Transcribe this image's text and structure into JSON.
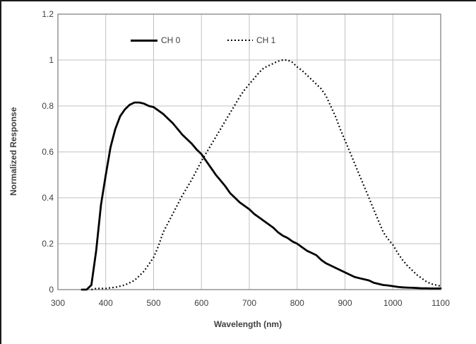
{
  "chart_data": {
    "type": "line",
    "title": "",
    "xlabel": "Wavelength (nm)",
    "ylabel": "Normalized Response",
    "xlim": [
      300,
      1100
    ],
    "ylim": [
      0,
      1.2
    ],
    "grid": true,
    "legend_position": "top-inside",
    "x_ticks": [
      300,
      400,
      500,
      600,
      700,
      800,
      900,
      1000,
      1100
    ],
    "y_ticks": [
      0,
      0.2,
      0.4,
      0.6,
      0.8,
      1,
      1.2
    ],
    "y_tick_labels": [
      "0",
      "0.2",
      "0.4",
      "0.6",
      "0.8",
      "1",
      "1.2"
    ],
    "x": [
      350,
      360,
      370,
      380,
      390,
      400,
      410,
      420,
      430,
      440,
      450,
      460,
      470,
      480,
      490,
      500,
      510,
      520,
      530,
      540,
      550,
      560,
      570,
      580,
      590,
      600,
      610,
      620,
      630,
      640,
      650,
      660,
      670,
      680,
      690,
      700,
      710,
      720,
      730,
      740,
      750,
      760,
      770,
      780,
      790,
      800,
      810,
      820,
      830,
      840,
      850,
      860,
      870,
      880,
      890,
      900,
      910,
      920,
      930,
      940,
      950,
      960,
      970,
      980,
      990,
      1000,
      1010,
      1020,
      1030,
      1040,
      1050,
      1060,
      1070,
      1080,
      1090,
      1100
    ],
    "series": [
      {
        "name": "CH 0",
        "style": "solid",
        "color": "#000000",
        "values": [
          0,
          0,
          0.02,
          0.17,
          0.37,
          0.5,
          0.62,
          0.7,
          0.755,
          0.785,
          0.805,
          0.815,
          0.815,
          0.81,
          0.8,
          0.795,
          0.78,
          0.765,
          0.745,
          0.725,
          0.7,
          0.675,
          0.655,
          0.635,
          0.61,
          0.59,
          0.56,
          0.53,
          0.5,
          0.475,
          0.45,
          0.42,
          0.4,
          0.38,
          0.365,
          0.35,
          0.33,
          0.315,
          0.3,
          0.285,
          0.27,
          0.25,
          0.235,
          0.225,
          0.21,
          0.2,
          0.185,
          0.17,
          0.16,
          0.15,
          0.13,
          0.115,
          0.105,
          0.095,
          0.085,
          0.075,
          0.065,
          0.055,
          0.05,
          0.045,
          0.04,
          0.03,
          0.025,
          0.02,
          0.018,
          0.015,
          0.012,
          0.01,
          0.009,
          0.008,
          0.007,
          0.006,
          0.006,
          0.005,
          0.005,
          0.005
        ]
      },
      {
        "name": "CH 1",
        "style": "dotted",
        "color": "#000000",
        "values": [
          null,
          null,
          0,
          0.005,
          0.005,
          0.005,
          0.008,
          0.01,
          0.015,
          0.02,
          0.03,
          0.04,
          0.06,
          0.08,
          0.11,
          0.14,
          0.19,
          0.25,
          0.29,
          0.33,
          0.37,
          0.41,
          0.445,
          0.48,
          0.52,
          0.56,
          0.595,
          0.63,
          0.665,
          0.7,
          0.735,
          0.77,
          0.805,
          0.84,
          0.87,
          0.895,
          0.92,
          0.945,
          0.965,
          0.975,
          0.985,
          0.995,
          1.0,
          1.0,
          0.99,
          0.97,
          0.955,
          0.935,
          0.915,
          0.895,
          0.875,
          0.845,
          0.8,
          0.755,
          0.7,
          0.65,
          0.6,
          0.55,
          0.5,
          0.45,
          0.4,
          0.35,
          0.3,
          0.25,
          0.22,
          0.195,
          0.16,
          0.13,
          0.105,
          0.085,
          0.065,
          0.05,
          0.035,
          0.025,
          0.02,
          0.015
        ]
      }
    ]
  },
  "colors": {
    "curve": "#000000",
    "gridline": "#c2c2c2",
    "plot_border": "#7a7a7a",
    "text": "#3f3f3f"
  }
}
